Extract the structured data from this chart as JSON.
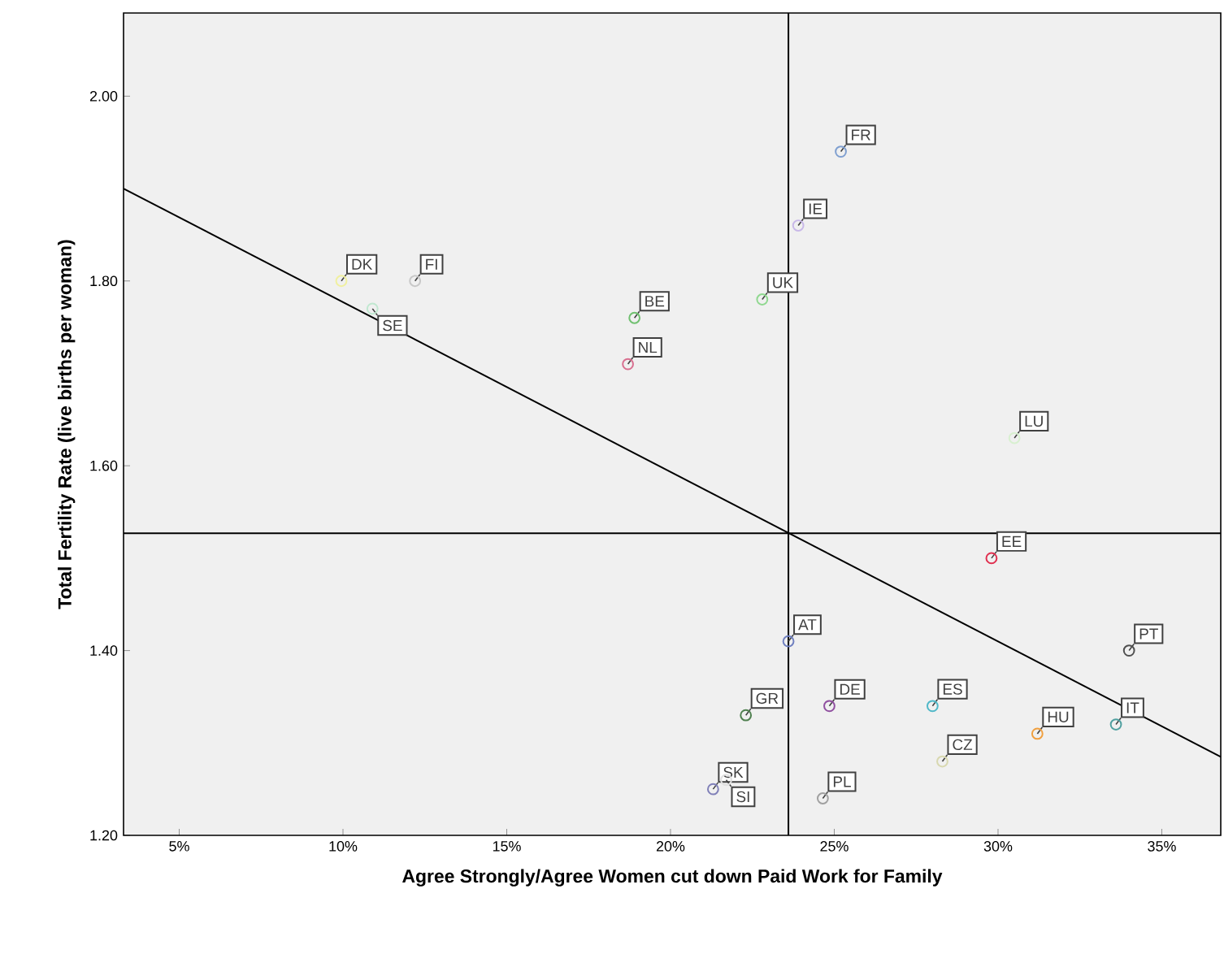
{
  "chart_data": {
    "type": "scatter",
    "xlabel": "Agree Strongly/Agree Women cut down Paid Work for Family",
    "ylabel": "Total Fertility Rate (live births per woman)",
    "xlim": [
      3.3,
      36.8
    ],
    "ylim": [
      1.2,
      2.09
    ],
    "xticks": [
      {
        "value": 5,
        "label": "5%"
      },
      {
        "value": 10,
        "label": "10%"
      },
      {
        "value": 15,
        "label": "15%"
      },
      {
        "value": 20,
        "label": "20%"
      },
      {
        "value": 25,
        "label": "25%"
      },
      {
        "value": 30,
        "label": "30%"
      },
      {
        "value": 35,
        "label": "35%"
      }
    ],
    "yticks": [
      {
        "value": 1.2,
        "label": "1.20"
      },
      {
        "value": 1.4,
        "label": "1.40"
      },
      {
        "value": 1.6,
        "label": "1.60"
      },
      {
        "value": 1.8,
        "label": "1.80"
      },
      {
        "value": 2.0,
        "label": "2.00"
      }
    ],
    "grid": false,
    "series": [
      {
        "marker": "circle",
        "x": [
          25.2,
          23.9,
          22.8,
          18.9,
          18.7,
          9.95,
          12.2,
          10.9,
          30.5,
          29.8,
          34.0,
          23.6,
          24.85,
          22.3,
          28.0,
          31.2,
          33.6,
          28.3,
          21.3,
          21.7,
          24.65
        ],
        "values": [
          1.94,
          1.86,
          1.78,
          1.76,
          1.71,
          1.8,
          1.8,
          1.77,
          1.63,
          1.5,
          1.4,
          1.41,
          1.34,
          1.33,
          1.34,
          1.31,
          1.32,
          1.28,
          1.25,
          1.26,
          1.24
        ],
        "colors": [
          "#7f9fd0",
          "#c8b8e8",
          "#90d890",
          "#70c070",
          "#d87090",
          "#f0f0a0",
          "#c8c8c8",
          "#c0e8d0",
          "#d8f0d0",
          "#e03050",
          "#505050",
          "#7080c0",
          "#9050a0",
          "#508050",
          "#50b8c8",
          "#f0a040",
          "#50a0a0",
          "#d8d8b0",
          "#8080b8",
          "#e0e0e0",
          "#a0a0a0"
        ]
      },
      {
        "type": "line",
        "x": [
          3.3,
          36.8
        ],
        "values": [
          1.9,
          1.285
        ],
        "color": "#000000"
      }
    ],
    "ref_lines": [
      {
        "axis": "x",
        "value": 23.6
      },
      {
        "axis": "y",
        "value": 1.527
      }
    ],
    "annotations": [
      {
        "text": "FR",
        "x": 25.2,
        "y": 1.94
      },
      {
        "text": "IE",
        "x": 23.9,
        "y": 1.86
      },
      {
        "text": "UK",
        "x": 22.8,
        "y": 1.78
      },
      {
        "text": "BE",
        "x": 18.9,
        "y": 1.76
      },
      {
        "text": "NL",
        "x": 18.7,
        "y": 1.71
      },
      {
        "text": "DK",
        "x": 9.95,
        "y": 1.8
      },
      {
        "text": "FI",
        "x": 12.2,
        "y": 1.8
      },
      {
        "text": "SE",
        "x": 10.9,
        "y": 1.77
      },
      {
        "text": "LU",
        "x": 30.5,
        "y": 1.63
      },
      {
        "text": "EE",
        "x": 29.8,
        "y": 1.5
      },
      {
        "text": "PT",
        "x": 34.0,
        "y": 1.4
      },
      {
        "text": "AT",
        "x": 23.6,
        "y": 1.41
      },
      {
        "text": "DE",
        "x": 24.85,
        "y": 1.34
      },
      {
        "text": "GR",
        "x": 22.3,
        "y": 1.33
      },
      {
        "text": "ES",
        "x": 28.0,
        "y": 1.34
      },
      {
        "text": "HU",
        "x": 31.2,
        "y": 1.31
      },
      {
        "text": "IT",
        "x": 33.6,
        "y": 1.32
      },
      {
        "text": "CZ",
        "x": 28.3,
        "y": 1.28
      },
      {
        "text": "SK",
        "x": 21.3,
        "y": 1.25
      },
      {
        "text": "SI",
        "x": 21.7,
        "y": 1.26
      },
      {
        "text": "PL",
        "x": 24.65,
        "y": 1.24
      }
    ]
  }
}
